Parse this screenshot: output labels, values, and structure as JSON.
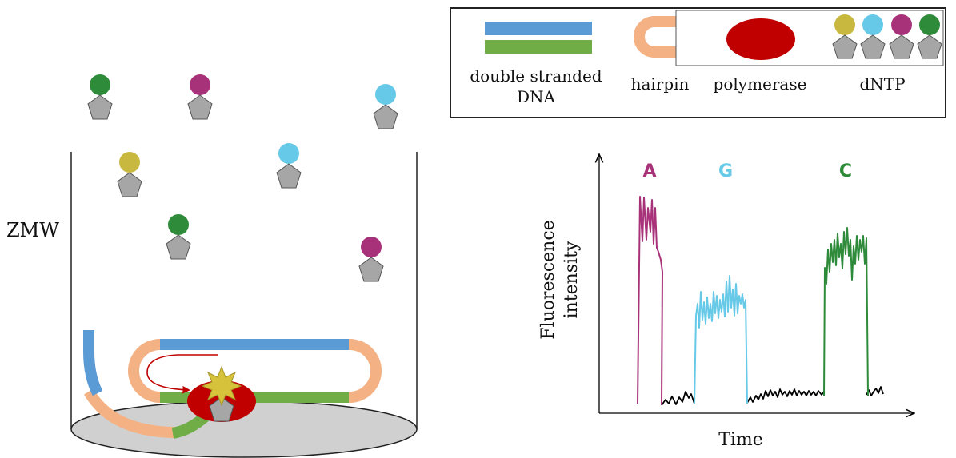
{
  "legend": {
    "dna_label_line1": "double stranded",
    "dna_label_line2": "DNA",
    "hairpin_label": "hairpin",
    "polymerase_label": "polymerase",
    "dntp_label": "dNTP"
  },
  "well": {
    "label": "ZMW"
  },
  "plot": {
    "ylabel_line1": "Fluorescence",
    "ylabel_line2": "intensity",
    "xlabel": "Time",
    "peaks": [
      {
        "label": "A",
        "color": "#a83279"
      },
      {
        "label": "G",
        "color": "#66c9e8"
      },
      {
        "label": "C",
        "color": "#2e8b3a"
      }
    ]
  },
  "colors": {
    "blue_strand": "#5b9bd5",
    "green_strand": "#70ad47",
    "hairpin": "#f4b183",
    "polymerase": "#c00000",
    "nucleotide_gray": "#a6a6a6",
    "yellow": "#c9b840",
    "cyan": "#66c9e8",
    "magenta": "#a83279",
    "green": "#2e8b3a",
    "flash": "#d6c33b",
    "arrow": "#c00000",
    "well_bottom": "#d0d0d0"
  }
}
